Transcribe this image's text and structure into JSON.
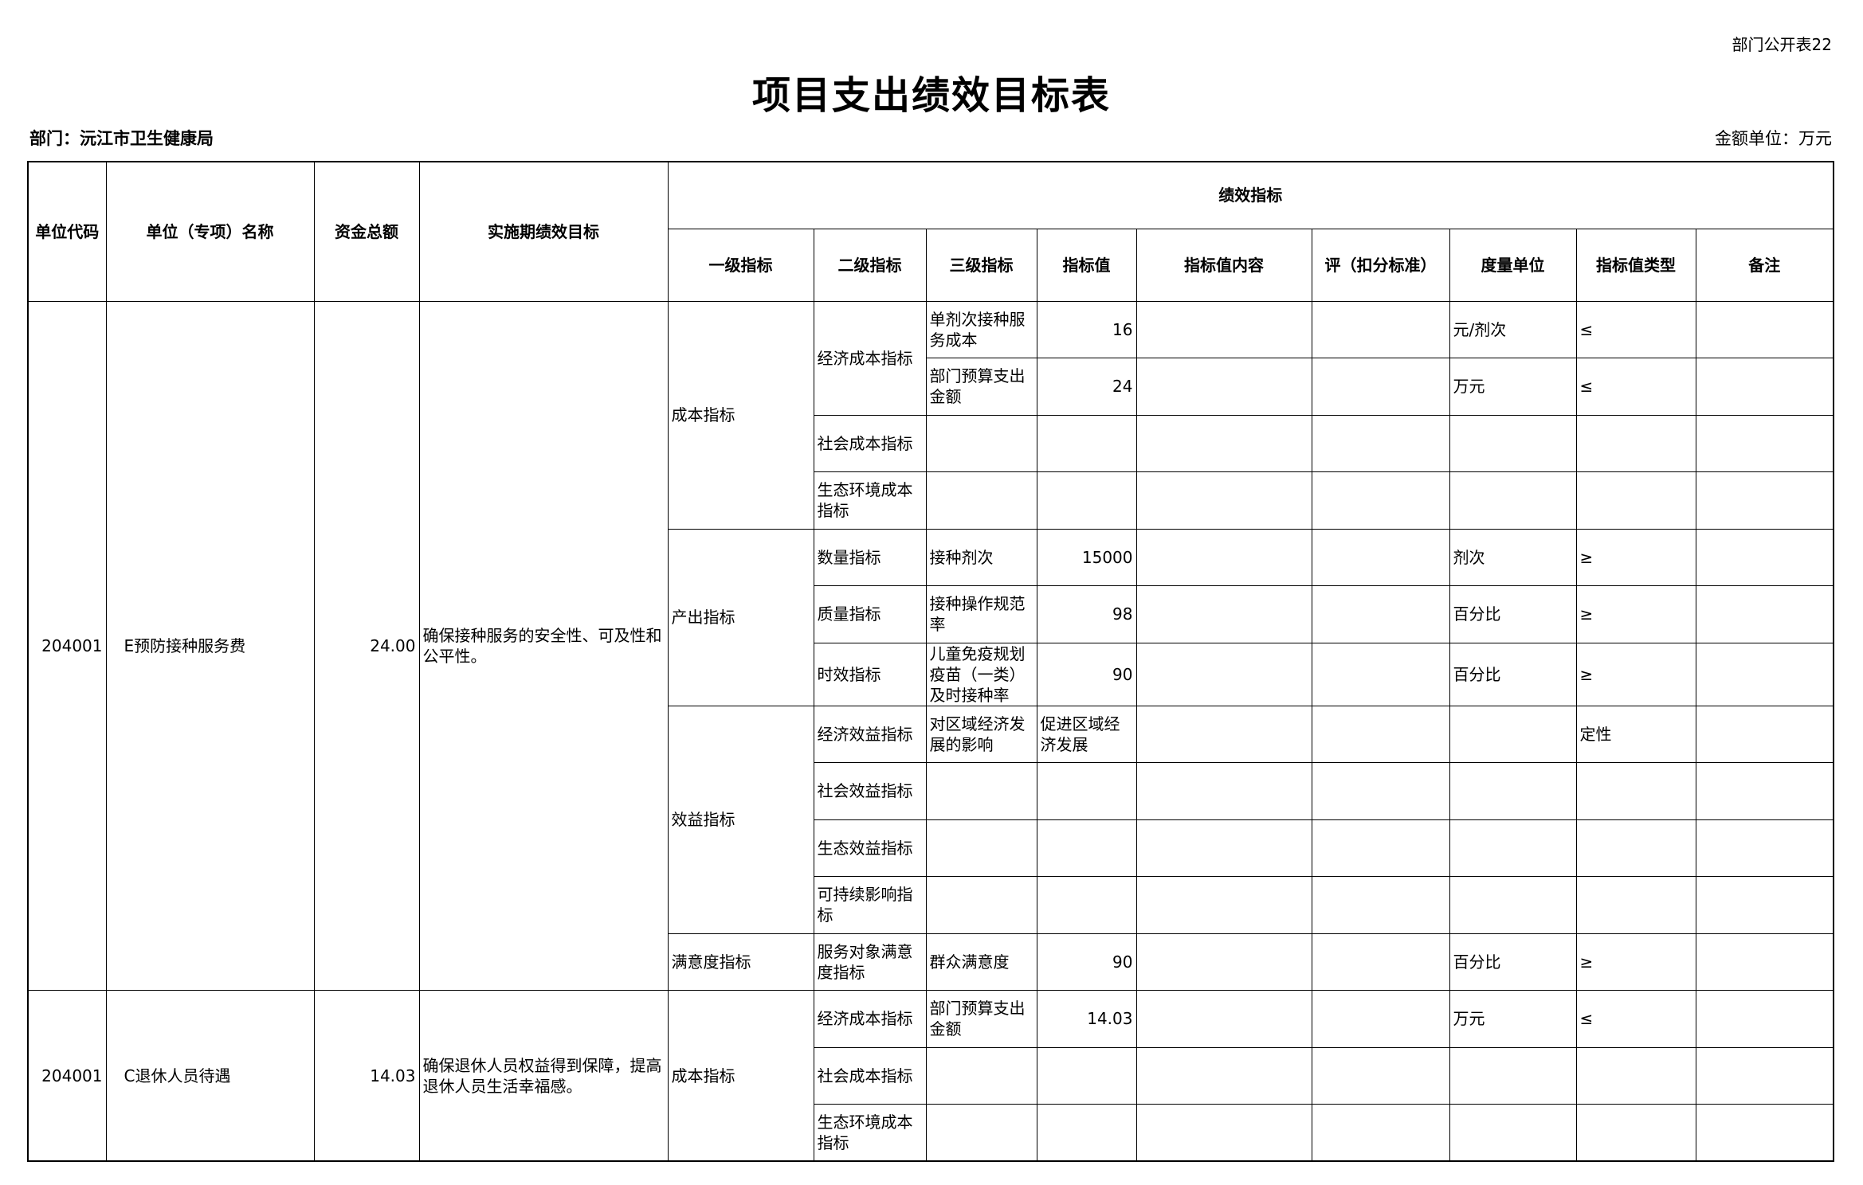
{
  "header": {
    "form_no": "部门公开表22",
    "title": "项目支出绩效目标表",
    "department": "部门：沅江市卫生健康局",
    "unit": "金额单位：万元"
  },
  "table": {
    "columns": [
      "单位代码",
      "单位（专项）名称",
      "资金总额",
      "实施期绩效目标"
    ],
    "group": "绩效指标",
    "sub_columns": [
      "一级指标",
      "二级指标",
      "三级指标",
      "指标值",
      "指标值内容",
      "评（扣分标准）",
      "度量单位",
      "指标值类型",
      "备注"
    ]
  },
  "projects": [
    {
      "code": "204001",
      "name": "E预防接种服务费",
      "amount": "24.00",
      "goal": "确保接种服务的安全性、可及性和公平性。",
      "level1": [
        {
          "name": "成本指标",
          "level2": [
            {
              "name": "经济成本指标",
              "items": [
                {
                  "name": "单剂次接种服务成本",
                  "value": "16",
                  "unit": "元/剂次",
                  "type": "≤"
                },
                {
                  "name": "部门预算支出金额",
                  "value": "24",
                  "unit": "万元",
                  "type": "≤"
                }
              ]
            },
            {
              "name": "社会成本指标",
              "items": []
            },
            {
              "name": "生态环境成本指标",
              "items": []
            }
          ]
        },
        {
          "name": "产出指标",
          "level2": [
            {
              "name": "数量指标",
              "items": [
                {
                  "name": "接种剂次",
                  "value": "15000",
                  "unit": "剂次",
                  "type": "≥"
                }
              ]
            },
            {
              "name": "质量指标",
              "items": [
                {
                  "name": "接种操作规范率",
                  "value": "98",
                  "unit": "百分比",
                  "type": "≥"
                }
              ]
            },
            {
              "name": "时效指标",
              "items": [
                {
                  "name": "儿童免疫规划疫苗（一类）及时接种率",
                  "value": "90",
                  "unit": "百分比",
                  "type": "≥"
                }
              ]
            }
          ]
        },
        {
          "name": "效益指标",
          "level2": [
            {
              "name": "经济效益指标",
              "items": [
                {
                  "name": "对区域经济发展的影响",
                  "value": "促进区域经济发展",
                  "type": "定性"
                }
              ]
            },
            {
              "name": "社会效益指标",
              "items": []
            },
            {
              "name": "生态效益指标",
              "items": []
            },
            {
              "name": "可持续影响指标",
              "items": []
            }
          ]
        },
        {
          "name": "满意度指标",
          "level2": [
            {
              "name": "服务对象满意度指标",
              "items": [
                {
                  "name": "群众满意度",
                  "value": "90",
                  "unit": "百分比",
                  "type": "≥"
                }
              ]
            }
          ]
        }
      ]
    },
    {
      "code": "204001",
      "name": "C退休人员待遇",
      "amount": "14.03",
      "goal": "确保退休人员权益得到保障，提高退休人员生活幸福感。",
      "level1": [
        {
          "name": "成本指标",
          "level2": [
            {
              "name": "经济成本指标",
              "items": [
                {
                  "name": "部门预算支出金额",
                  "value": "14.03",
                  "unit": "万元",
                  "type": "≤"
                }
              ]
            },
            {
              "name": "社会成本指标",
              "items": []
            },
            {
              "name": "生态环境成本指标",
              "items": []
            }
          ]
        }
      ]
    }
  ]
}
